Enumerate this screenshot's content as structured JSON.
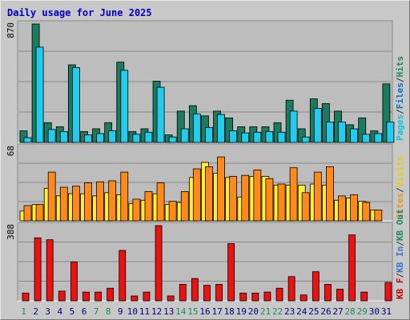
{
  "chart_data": [
    {
      "panel": "top",
      "type": "bar",
      "title": "Daily usage for June 2025",
      "ymax_label": "870",
      "ylim": [
        0,
        870
      ],
      "categories": [
        "1",
        "2",
        "3",
        "4",
        "5",
        "6",
        "7",
        "8",
        "9",
        "10",
        "11",
        "12",
        "13",
        "14",
        "15",
        "16",
        "17",
        "18",
        "19",
        "20",
        "21",
        "22",
        "23",
        "24",
        "25",
        "26",
        "27",
        "28",
        "29",
        "30",
        "31"
      ],
      "legend": [
        {
          "text": "Pages",
          "color": "#00c8e0"
        },
        {
          "text": "/",
          "color": "#333333"
        },
        {
          "text": "Files",
          "color": "#0070d0"
        },
        {
          "text": "/",
          "color": "#333333"
        },
        {
          "text": "Hits",
          "color": "#1a8a5a"
        }
      ],
      "series": [
        {
          "name": "Hits",
          "color": "#1b7b5e",
          "values": [
            85,
            870,
            145,
            115,
            570,
            80,
            100,
            145,
            590,
            80,
            100,
            450,
            55,
            230,
            270,
            195,
            230,
            180,
            115,
            115,
            115,
            145,
            310,
            100,
            320,
            285,
            230,
            130,
            180,
            85,
            430
          ]
        },
        {
          "name": "Files",
          "color": "#22ccee",
          "values": [
            35,
            700,
            95,
            80,
            550,
            55,
            65,
            85,
            530,
            60,
            75,
            405,
            40,
            100,
            210,
            110,
            205,
            85,
            70,
            75,
            80,
            75,
            230,
            40,
            250,
            150,
            150,
            100,
            60,
            65,
            150
          ]
        }
      ]
    },
    {
      "panel": "middle",
      "type": "bar",
      "ymax_label": "68",
      "ylim": [
        0,
        68
      ],
      "categories": [
        "1",
        "2",
        "3",
        "4",
        "5",
        "6",
        "7",
        "8",
        "9",
        "10",
        "11",
        "12",
        "13",
        "14",
        "15",
        "16",
        "17",
        "18",
        "19",
        "20",
        "21",
        "22",
        "23",
        "24",
        "25",
        "26",
        "27",
        "28",
        "29",
        "30",
        "31"
      ],
      "legend": [
        {
          "text": "Sites",
          "color": "#e8961e"
        },
        {
          "text": "/",
          "color": "#333333"
        },
        {
          "text": "Visits",
          "color": "#e8d000"
        }
      ],
      "series": [
        {
          "name": "Visits",
          "color": "#ffee33",
          "values": [
            9,
            15,
            30,
            23,
            25,
            25,
            23,
            26,
            24,
            16,
            19,
            25,
            15,
            17,
            40,
            54,
            44,
            40,
            22,
            41,
            41,
            33,
            33,
            33,
            34,
            33,
            19,
            21,
            18,
            10,
            0
          ]
        },
        {
          "name": "Sites",
          "color": "#ff8a1a",
          "values": [
            14,
            15,
            45,
            31,
            32,
            35,
            36,
            37,
            45,
            20,
            27,
            35,
            18,
            27,
            48,
            50,
            59,
            41,
            42,
            47,
            39,
            34,
            49,
            26,
            45,
            50,
            23,
            24,
            17,
            10,
            0
          ]
        }
      ]
    },
    {
      "panel": "bottom",
      "type": "bar",
      "ymax_label": "388",
      "ylim": [
        0,
        388
      ],
      "categories": [
        "1",
        "2",
        "3",
        "4",
        "5",
        "6",
        "7",
        "8",
        "9",
        "10",
        "11",
        "12",
        "13",
        "14",
        "15",
        "16",
        "17",
        "18",
        "19",
        "20",
        "21",
        "22",
        "23",
        "24",
        "25",
        "26",
        "27",
        "28",
        "29",
        "30",
        "31"
      ],
      "legend": [
        {
          "text": "KB F",
          "color": "#cc0000"
        },
        {
          "text": "/",
          "color": "#333333"
        },
        {
          "text": "KB In",
          "color": "#3377cc"
        },
        {
          "text": "/",
          "color": "#333333"
        },
        {
          "text": "KB Out",
          "color": "#1a8a5a"
        }
      ],
      "series": [
        {
          "name": "KB F",
          "color": "#ee1111",
          "values": [
            40,
            325,
            315,
            50,
            200,
            45,
            45,
            65,
            260,
            25,
            45,
            388,
            25,
            85,
            115,
            80,
            85,
            295,
            40,
            40,
            45,
            65,
            125,
            30,
            150,
            85,
            60,
            340,
            45,
            0,
            95
          ]
        }
      ]
    }
  ],
  "x_axis": {
    "labels": [
      "1",
      "2",
      "3",
      "4",
      "5",
      "6",
      "7",
      "8",
      "9",
      "10",
      "11",
      "12",
      "13",
      "14",
      "15",
      "16",
      "17",
      "18",
      "19",
      "20",
      "21",
      "22",
      "23",
      "24",
      "25",
      "26",
      "27",
      "28",
      "29",
      "30",
      "31"
    ],
    "weekend_days": [
      "1",
      "7",
      "8",
      "14",
      "15",
      "21",
      "22",
      "28",
      "29"
    ],
    "weekday_color": "#000080",
    "weekend_color": "#1a8a5a"
  },
  "colors": {
    "background": "#c8c8c8",
    "plot": "#bdbdbd",
    "title": "#0000c8",
    "grid": "#888888"
  }
}
